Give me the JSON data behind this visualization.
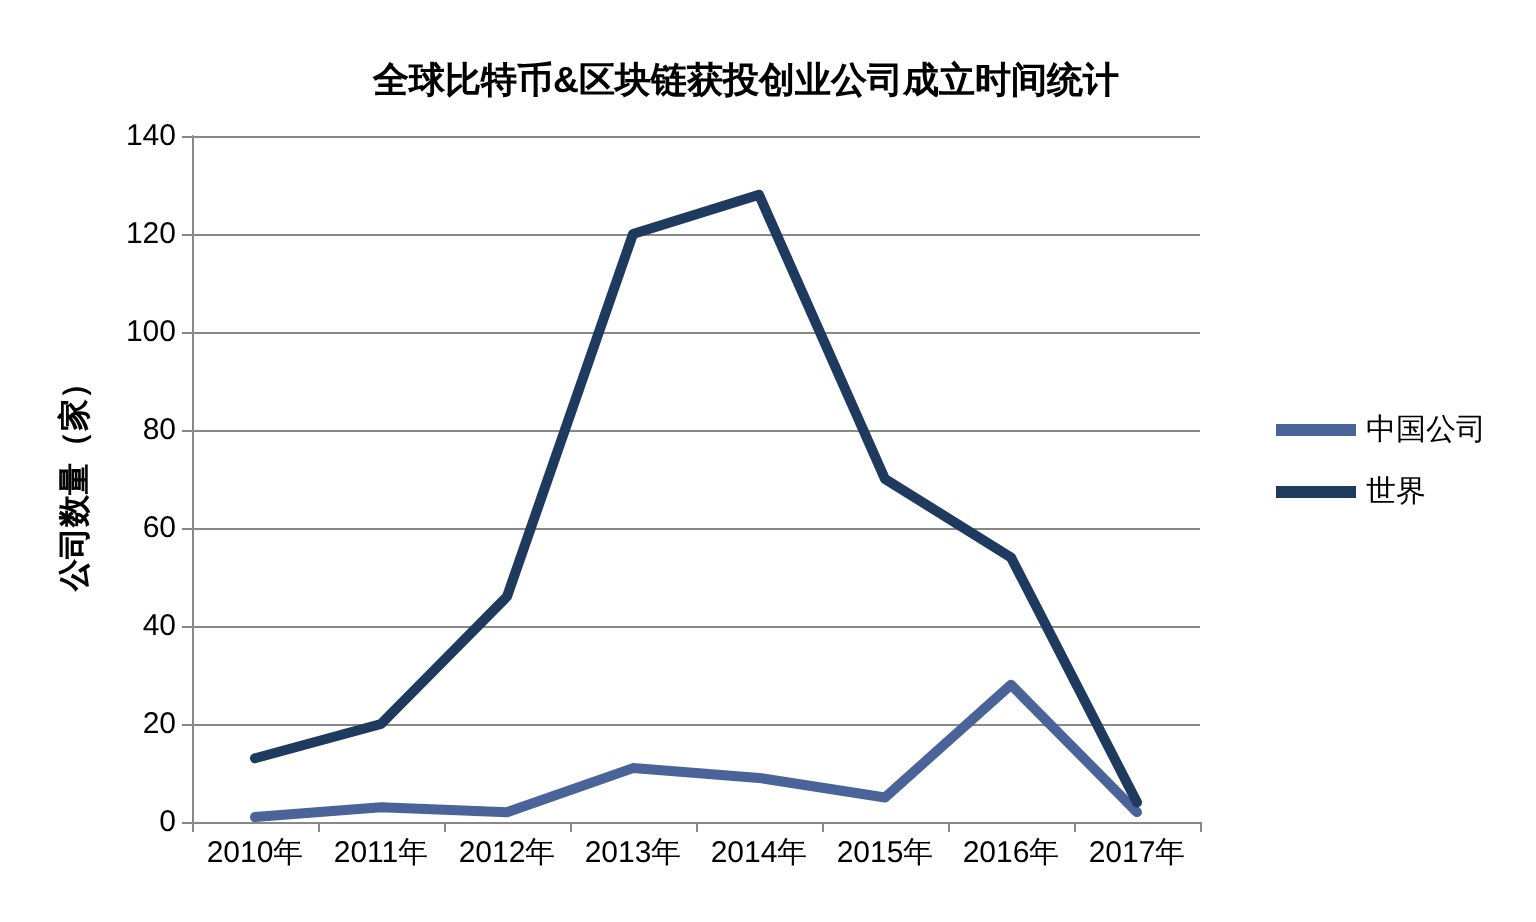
{
  "chart_data": {
    "type": "line",
    "title": "全球比特币&区块链获投创业公司成立时间统计",
    "ylabel": "公司数量（家）",
    "categories": [
      "2010年",
      "2011年",
      "2012年",
      "2013年",
      "2014年",
      "2015年",
      "2016年",
      "2017年"
    ],
    "series": [
      {
        "name": "中国公司",
        "color": "#4a6398",
        "values": [
          1,
          3,
          2,
          11,
          9,
          5,
          28,
          2
        ]
      },
      {
        "name": "世界",
        "color": "#1f3a5f",
        "values": [
          13,
          20,
          46,
          120,
          128,
          70,
          54,
          4
        ]
      }
    ],
    "ylim": [
      0,
      140
    ],
    "yticks": [
      0,
      20,
      40,
      60,
      80,
      100,
      120,
      140
    ],
    "grid": "y",
    "legend": "right",
    "marker": "none",
    "line_style": "solid"
  }
}
